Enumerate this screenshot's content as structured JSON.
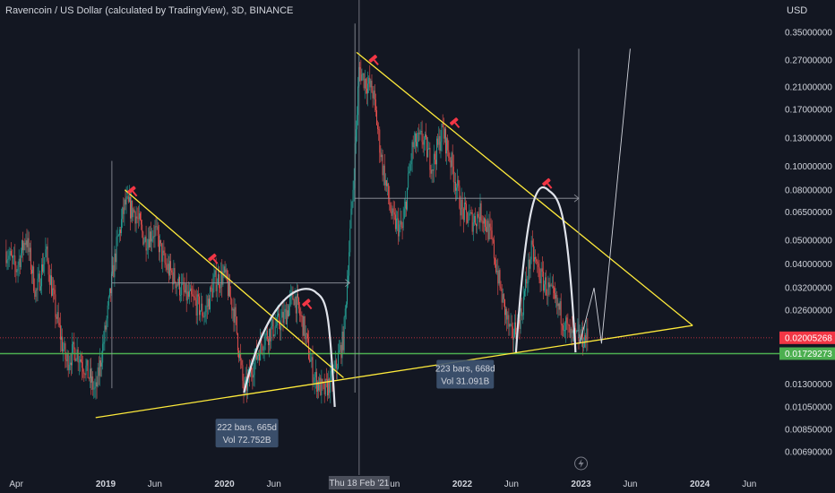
{
  "header": {
    "title": "Ravencoin / US Dollar (calculated by TradingView), 3D, BINANCE",
    "currency": "USD"
  },
  "colors": {
    "background": "#131722",
    "candle_up": "#26a69a",
    "candle_down": "#ef5350",
    "trendline": "#ffeb3b",
    "support": "#4caf50",
    "arc": "#e0e3eb",
    "last_price": "#f23645",
    "range_box": "#3f5472"
  },
  "chart_data": {
    "type": "candlestick",
    "symbol": "RVNUSD",
    "exchange": "BINANCE",
    "interval": "3D",
    "scale": "log",
    "y_ticks": [
      "0.35000000",
      "0.27000000",
      "0.21000000",
      "0.17000000",
      "0.13000000",
      "0.10000000",
      "0.08000000",
      "0.06500000",
      "0.05000000",
      "0.04000000",
      "0.03200000",
      "0.02600000",
      "0.01300000",
      "0.01050000",
      "0.00850000",
      "0.00690000"
    ],
    "x_ticks": [
      {
        "label": "Apr",
        "bold": false
      },
      {
        "label": "2019",
        "bold": true
      },
      {
        "label": "Jun",
        "bold": false
      },
      {
        "label": "2020",
        "bold": true
      },
      {
        "label": "Jun",
        "bold": false
      },
      {
        "label": "Jun",
        "bold": false
      },
      {
        "label": "2022",
        "bold": true
      },
      {
        "label": "Jun",
        "bold": false
      },
      {
        "label": "2023",
        "bold": true
      },
      {
        "label": "Jun",
        "bold": false
      },
      {
        "label": "2024",
        "bold": true
      },
      {
        "label": "Jun",
        "bold": false
      }
    ],
    "crosshair_date": "Thu 18 Feb '21",
    "last_price": "0.02005268",
    "support_price": "0.01729273",
    "annotations": [
      {
        "bars": "222 bars, 665d",
        "volume": "Vol 72.752B"
      },
      {
        "bars": "223 bars, 668d",
        "volume": "Vol 31.091B"
      }
    ],
    "series": [
      {
        "date": "2018-03-01",
        "close": 0.045
      },
      {
        "date": "2018-04-01",
        "close": 0.038
      },
      {
        "date": "2018-05-01",
        "close": 0.052
      },
      {
        "date": "2018-06-01",
        "close": 0.03
      },
      {
        "date": "2018-07-01",
        "close": 0.045
      },
      {
        "date": "2018-08-01",
        "close": 0.025
      },
      {
        "date": "2018-09-01",
        "close": 0.016
      },
      {
        "date": "2018-10-01",
        "close": 0.018
      },
      {
        "date": "2018-11-01",
        "close": 0.015
      },
      {
        "date": "2018-12-01",
        "close": 0.012
      },
      {
        "date": "2019-01-01",
        "close": 0.022
      },
      {
        "date": "2019-02-01",
        "close": 0.045
      },
      {
        "date": "2019-03-01",
        "close": 0.07
      },
      {
        "date": "2019-04-01",
        "close": 0.065
      },
      {
        "date": "2019-05-01",
        "close": 0.05
      },
      {
        "date": "2019-06-01",
        "close": 0.055
      },
      {
        "date": "2019-07-01",
        "close": 0.04
      },
      {
        "date": "2019-08-01",
        "close": 0.035
      },
      {
        "date": "2019-09-01",
        "close": 0.03
      },
      {
        "date": "2019-10-01",
        "close": 0.028
      },
      {
        "date": "2019-11-01",
        "close": 0.025
      },
      {
        "date": "2019-12-01",
        "close": 0.034
      },
      {
        "date": "2020-01-01",
        "close": 0.036
      },
      {
        "date": "2020-02-01",
        "close": 0.025
      },
      {
        "date": "2020-03-01",
        "close": 0.012
      },
      {
        "date": "2020-04-01",
        "close": 0.016
      },
      {
        "date": "2020-05-01",
        "close": 0.02
      },
      {
        "date": "2020-06-01",
        "close": 0.022
      },
      {
        "date": "2020-07-01",
        "close": 0.024
      },
      {
        "date": "2020-08-01",
        "close": 0.03
      },
      {
        "date": "2020-09-01",
        "close": 0.022
      },
      {
        "date": "2020-10-01",
        "close": 0.014
      },
      {
        "date": "2020-11-01",
        "close": 0.012
      },
      {
        "date": "2020-12-01",
        "close": 0.014
      },
      {
        "date": "2021-01-01",
        "close": 0.02
      },
      {
        "date": "2021-02-01",
        "close": 0.09
      },
      {
        "date": "2021-02-18",
        "close": 0.25
      },
      {
        "date": "2021-03-01",
        "close": 0.23
      },
      {
        "date": "2021-04-01",
        "close": 0.2
      },
      {
        "date": "2021-05-01",
        "close": 0.1
      },
      {
        "date": "2021-06-01",
        "close": 0.06
      },
      {
        "date": "2021-07-01",
        "close": 0.055
      },
      {
        "date": "2021-08-01",
        "close": 0.12
      },
      {
        "date": "2021-09-01",
        "close": 0.13
      },
      {
        "date": "2021-10-01",
        "close": 0.1
      },
      {
        "date": "2021-11-01",
        "close": 0.14
      },
      {
        "date": "2021-12-01",
        "close": 0.1
      },
      {
        "date": "2022-01-01",
        "close": 0.065
      },
      {
        "date": "2022-02-01",
        "close": 0.06
      },
      {
        "date": "2022-03-01",
        "close": 0.065
      },
      {
        "date": "2022-04-01",
        "close": 0.05
      },
      {
        "date": "2022-05-01",
        "close": 0.03
      },
      {
        "date": "2022-06-01",
        "close": 0.02
      },
      {
        "date": "2022-07-01",
        "close": 0.025
      },
      {
        "date": "2022-08-01",
        "close": 0.045
      },
      {
        "date": "2022-09-01",
        "close": 0.035
      },
      {
        "date": "2022-10-01",
        "close": 0.03
      },
      {
        "date": "2022-11-01",
        "close": 0.025
      },
      {
        "date": "2022-12-01",
        "close": 0.02
      },
      {
        "date": "2023-01-01",
        "close": 0.02
      }
    ]
  }
}
